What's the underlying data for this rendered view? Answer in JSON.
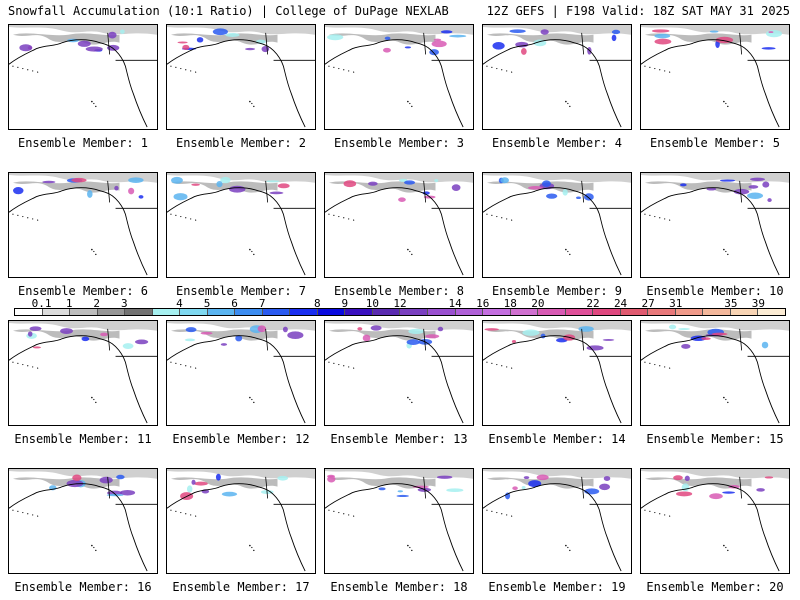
{
  "header": {
    "left": "Snowfall Accumulation (10:1 Ratio) | College of DuPage NEXLAB",
    "right": "12Z GEFS | F198 Valid: 18Z SAT MAY 31 2025"
  },
  "panels": [
    {
      "label": "Ensemble Member: 1"
    },
    {
      "label": "Ensemble Member: 2"
    },
    {
      "label": "Ensemble Member: 3"
    },
    {
      "label": "Ensemble Member: 4"
    },
    {
      "label": "Ensemble Member: 5"
    },
    {
      "label": "Ensemble Member: 6"
    },
    {
      "label": "Ensemble Member: 7"
    },
    {
      "label": "Ensemble Member: 8"
    },
    {
      "label": "Ensemble Member: 9"
    },
    {
      "label": "Ensemble Member: 10"
    },
    {
      "label": "Ensemble Member: 11"
    },
    {
      "label": "Ensemble Member: 12"
    },
    {
      "label": "Ensemble Member: 13"
    },
    {
      "label": "Ensemble Member: 14"
    },
    {
      "label": "Ensemble Member: 15"
    },
    {
      "label": "Ensemble Member: 16"
    },
    {
      "label": "Ensemble Member: 17"
    },
    {
      "label": "Ensemble Member: 18"
    },
    {
      "label": "Ensemble Member: 19"
    },
    {
      "label": "Ensemble Member: 20"
    }
  ],
  "colorbar": {
    "labels": [
      "0.1",
      "1",
      "2",
      "3",
      "4",
      "5",
      "6",
      "7",
      "8",
      "9",
      "10",
      "12",
      "14",
      "16",
      "18",
      "20",
      "22",
      "24",
      "27",
      "31",
      "35",
      "39"
    ],
    "colors": [
      "#ffffff",
      "#dcdcdc",
      "#bdbdbd",
      "#969696",
      "#737373",
      "#a6f0f0",
      "#7fd8f0",
      "#5ab4f0",
      "#3c8cf0",
      "#2a5af0",
      "#1a2ef0",
      "#0a0ae0",
      "#3a10c0",
      "#5a2ab0",
      "#7a40c0",
      "#9a50d0",
      "#b060d8",
      "#c46ee0",
      "#d070d0",
      "#d85ab4",
      "#e0509a",
      "#e04880",
      "#e05a70",
      "#e8787a",
      "#f09a8a",
      "#f4b89c",
      "#f8d4b4",
      "#fcecd4"
    ]
  }
}
